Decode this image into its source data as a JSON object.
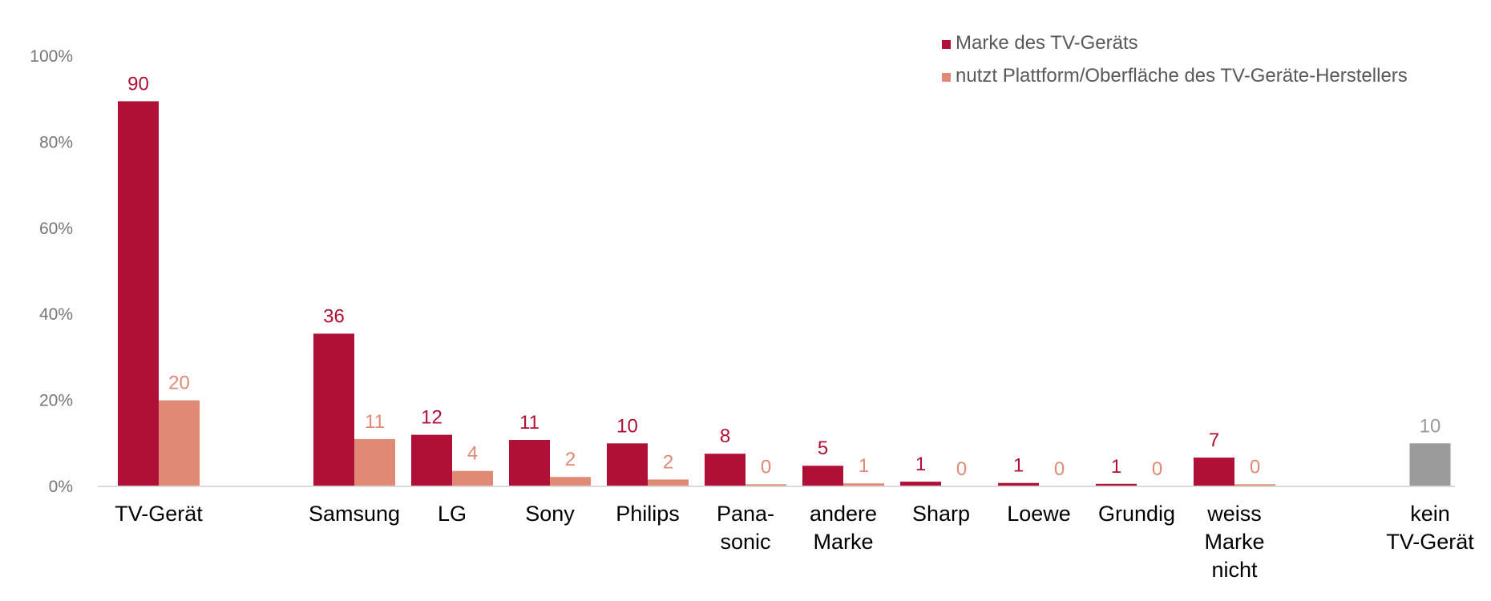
{
  "chart_data": {
    "type": "bar",
    "title": "",
    "xlabel": "",
    "ylabel": "",
    "ylim": [
      0,
      100
    ],
    "y_ticks": [
      0,
      20,
      40,
      60,
      80,
      100
    ],
    "y_tick_suffix": "%",
    "grid": false,
    "legend_position": "top-right",
    "categories": [
      {
        "lines": [
          "TV-Gerät"
        ],
        "slot": 0
      },
      {
        "lines": [
          "Samsung"
        ],
        "slot": 2
      },
      {
        "lines": [
          "LG"
        ],
        "slot": 3
      },
      {
        "lines": [
          "Sony"
        ],
        "slot": 4
      },
      {
        "lines": [
          "Philips"
        ],
        "slot": 5
      },
      {
        "lines": [
          "Pana-",
          "sonic"
        ],
        "slot": 6
      },
      {
        "lines": [
          "andere",
          "Marke"
        ],
        "slot": 7
      },
      {
        "lines": [
          "Sharp"
        ],
        "slot": 8
      },
      {
        "lines": [
          "Loewe"
        ],
        "slot": 9
      },
      {
        "lines": [
          "Grundig"
        ],
        "slot": 10
      },
      {
        "lines": [
          "weiss",
          "Marke",
          "nicht"
        ],
        "slot": 11
      },
      {
        "lines": [
          "kein",
          "TV-Gerät"
        ],
        "slot": 13
      }
    ],
    "series": [
      {
        "name": "Marke des TV-Geräts",
        "color": "#B01035",
        "values": [
          90,
          36,
          12,
          11,
          10,
          8,
          5,
          1,
          1,
          1,
          7,
          null
        ],
        "labels": [
          "90",
          "36",
          "12",
          "11",
          "10",
          "8",
          "5",
          "1",
          "1",
          "1",
          "7",
          null
        ],
        "shown": [
          89.5,
          35.5,
          12,
          10.8,
          10,
          7.6,
          4.8,
          1.1,
          0.8,
          0.6,
          6.7,
          null
        ]
      },
      {
        "name": "nutzt Plattform/Oberfläche des TV-Geräte-Herstellers",
        "color": "#E08A76",
        "values": [
          20,
          11,
          4,
          2,
          2,
          0,
          1,
          0,
          0,
          0,
          0,
          null
        ],
        "labels": [
          "20",
          "11",
          "4",
          "2",
          "2",
          "0",
          "1",
          "0",
          "0",
          "0",
          "0",
          null
        ],
        "shown": [
          20,
          11,
          3.6,
          2.2,
          1.6,
          0.5,
          0.7,
          0,
          0,
          0,
          0.5,
          null
        ]
      }
    ],
    "extra": {
      "category_index": 11,
      "value": 10,
      "label": "10",
      "color": "#9B9B9B",
      "label_color": "#9B9B9B"
    }
  }
}
